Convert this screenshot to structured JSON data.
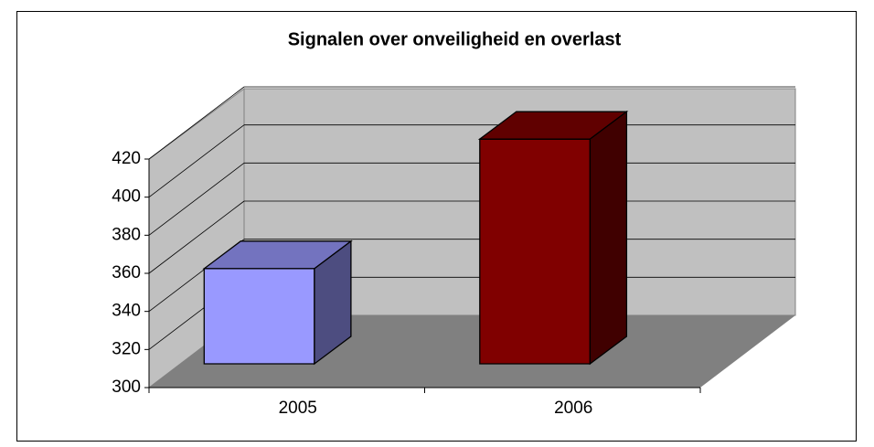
{
  "chart_data": {
    "type": "bar3d",
    "title": "Signalen over onveiligheid en overlast",
    "categories": [
      "2005",
      "2006"
    ],
    "values": [
      350,
      418
    ],
    "colors": [
      "#9999ff",
      "#800000"
    ],
    "ylim": [
      300,
      420
    ],
    "yticks": [
      300,
      320,
      340,
      360,
      380,
      400,
      420
    ],
    "grid": true
  }
}
